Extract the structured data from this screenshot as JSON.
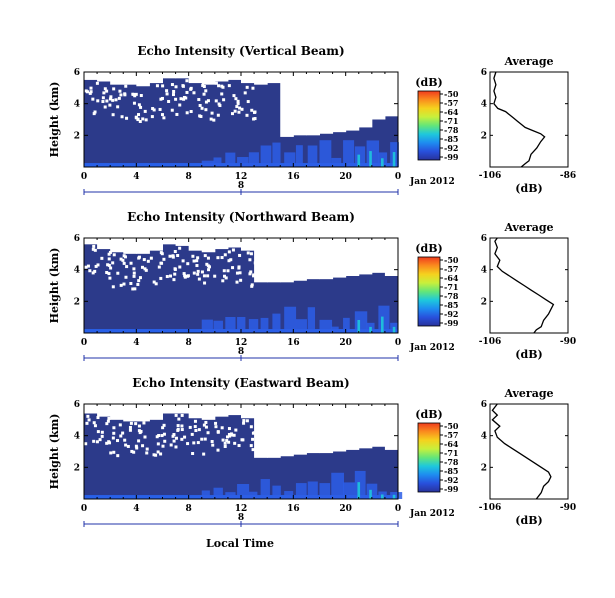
{
  "figure": {
    "xlabel": "Local Time",
    "date_label": "Jan 2012",
    "units": "(dB)",
    "average_title": "Average",
    "avg_xlabel": "(dB)"
  },
  "colorbar": {
    "ticks": [
      "-50",
      "-57",
      "-64",
      "-71",
      "-78",
      "-85",
      "-92",
      "-99"
    ],
    "colors": [
      "#f03c1e",
      "#fa8c1e",
      "#f5d21e",
      "#c8f03c",
      "#64e678",
      "#1ec8dc",
      "#1e8cf0",
      "#2850dc",
      "#28329b"
    ]
  },
  "chart_data": [
    {
      "type": "heatmap",
      "title": "Echo Intensity (Vertical Beam)",
      "xlabel": "",
      "ylabel": "Height (km)",
      "x_ticks": [
        "0",
        "4",
        "8",
        "12",
        "16",
        "20",
        "0"
      ],
      "day_tick": "8",
      "xlim": [
        0,
        24
      ],
      "y_ticks": [
        "2",
        "4",
        "6"
      ],
      "ylim": [
        0,
        6
      ],
      "zlim": [
        -99,
        -50
      ],
      "background_db": -96,
      "blank_above_km": [
        5.5,
        5.4,
        5.2,
        5.2,
        5.1,
        5.3,
        5.6,
        5.6,
        5.3,
        5.2,
        5.4,
        5.5,
        5.3,
        5.2,
        5.3,
        1.9,
        2.0,
        2.0,
        2.1,
        2.2,
        2.3,
        2.5,
        3.0,
        3.2
      ],
      "average_profile": {
        "xlim": [
          -106,
          -86
        ],
        "x_ticks": [
          "-106",
          "-86"
        ],
        "y_ticks": [
          "2",
          "4",
          "6"
        ],
        "ylim": [
          0,
          6
        ],
        "points": [
          [
            -98,
            0.0
          ],
          [
            -97,
            0.2
          ],
          [
            -96,
            0.4
          ],
          [
            -95.5,
            0.8
          ],
          [
            -94,
            1.2
          ],
          [
            -93,
            1.6
          ],
          [
            -92,
            1.9
          ],
          [
            -93,
            2.1
          ],
          [
            -95,
            2.3
          ],
          [
            -97,
            2.5
          ],
          [
            -98,
            2.7
          ],
          [
            -99,
            2.9
          ],
          [
            -100,
            3.1
          ],
          [
            -101,
            3.3
          ],
          [
            -102,
            3.5
          ],
          [
            -104,
            3.7
          ],
          [
            -105,
            4.0
          ],
          [
            -104.5,
            4.4
          ],
          [
            -105,
            4.8
          ],
          [
            -104.5,
            5.2
          ],
          [
            -105,
            5.6
          ],
          [
            -104.5,
            6.0
          ]
        ]
      }
    },
    {
      "type": "heatmap",
      "title": "Echo Intensity (Northward Beam)",
      "xlabel": "",
      "ylabel": "Height (km)",
      "x_ticks": [
        "0",
        "4",
        "8",
        "12",
        "16",
        "20",
        "0"
      ],
      "day_tick": "8",
      "xlim": [
        0,
        24
      ],
      "y_ticks": [
        "2",
        "4",
        "6"
      ],
      "ylim": [
        0,
        6
      ],
      "zlim": [
        -99,
        -50
      ],
      "background_db": -96,
      "blank_above_km": [
        5.6,
        5.3,
        5.1,
        5.0,
        5.0,
        5.2,
        5.6,
        5.5,
        5.2,
        5.1,
        5.3,
        5.4,
        5.2,
        3.2,
        3.2,
        3.2,
        3.3,
        3.4,
        3.4,
        3.5,
        3.6,
        3.7,
        3.8,
        3.6
      ],
      "average_profile": {
        "xlim": [
          -106,
          -90
        ],
        "x_ticks": [
          "-106",
          "-90"
        ],
        "y_ticks": [
          "2",
          "4",
          "6"
        ],
        "ylim": [
          0,
          6
        ],
        "points": [
          [
            -97,
            0.0
          ],
          [
            -96.5,
            0.2
          ],
          [
            -95.5,
            0.4
          ],
          [
            -95,
            0.8
          ],
          [
            -94,
            1.2
          ],
          [
            -93.5,
            1.5
          ],
          [
            -93,
            1.8
          ],
          [
            -94.5,
            2.1
          ],
          [
            -96,
            2.4
          ],
          [
            -97.5,
            2.7
          ],
          [
            -99,
            3.0
          ],
          [
            -100.5,
            3.3
          ],
          [
            -102,
            3.6
          ],
          [
            -103.5,
            3.9
          ],
          [
            -104.5,
            4.2
          ],
          [
            -104,
            4.6
          ],
          [
            -105,
            5.0
          ],
          [
            -104.5,
            5.4
          ],
          [
            -105,
            5.8
          ],
          [
            -104.5,
            6.0
          ]
        ]
      }
    },
    {
      "type": "heatmap",
      "title": "Echo Intensity (Eastward Beam)",
      "xlabel": "Local Time",
      "ylabel": "Height (km)",
      "x_ticks": [
        "0",
        "4",
        "8",
        "12",
        "16",
        "20",
        "0"
      ],
      "day_tick": "8",
      "xlim": [
        0,
        24
      ],
      "y_ticks": [
        "2",
        "4",
        "6"
      ],
      "ylim": [
        0,
        6
      ],
      "zlim": [
        -99,
        -50
      ],
      "background_db": -96,
      "blank_above_km": [
        5.4,
        5.2,
        5.0,
        4.9,
        4.9,
        5.0,
        5.4,
        5.4,
        5.1,
        5.0,
        5.2,
        5.3,
        5.1,
        2.6,
        2.6,
        2.7,
        2.8,
        2.9,
        2.9,
        3.0,
        3.1,
        3.2,
        3.3,
        3.1
      ],
      "average_profile": {
        "xlim": [
          -106,
          -90
        ],
        "x_ticks": [
          "-106",
          "-90"
        ],
        "y_ticks": [
          "2",
          "4",
          "6"
        ],
        "ylim": [
          0,
          6
        ],
        "points": [
          [
            -96.5,
            0.0
          ],
          [
            -96,
            0.2
          ],
          [
            -95.5,
            0.4
          ],
          [
            -95,
            0.8
          ],
          [
            -94,
            1.1
          ],
          [
            -93.5,
            1.4
          ],
          [
            -94,
            1.7
          ],
          [
            -95.5,
            2.0
          ],
          [
            -97,
            2.3
          ],
          [
            -98.5,
            2.6
          ],
          [
            -100,
            2.9
          ],
          [
            -101.5,
            3.2
          ],
          [
            -103,
            3.5
          ],
          [
            -104.5,
            3.9
          ],
          [
            -105,
            4.3
          ],
          [
            -104,
            4.6
          ],
          [
            -105.5,
            5.0
          ],
          [
            -104.5,
            5.3
          ],
          [
            -105.5,
            5.6
          ],
          [
            -104.5,
            6.0
          ]
        ]
      }
    }
  ]
}
